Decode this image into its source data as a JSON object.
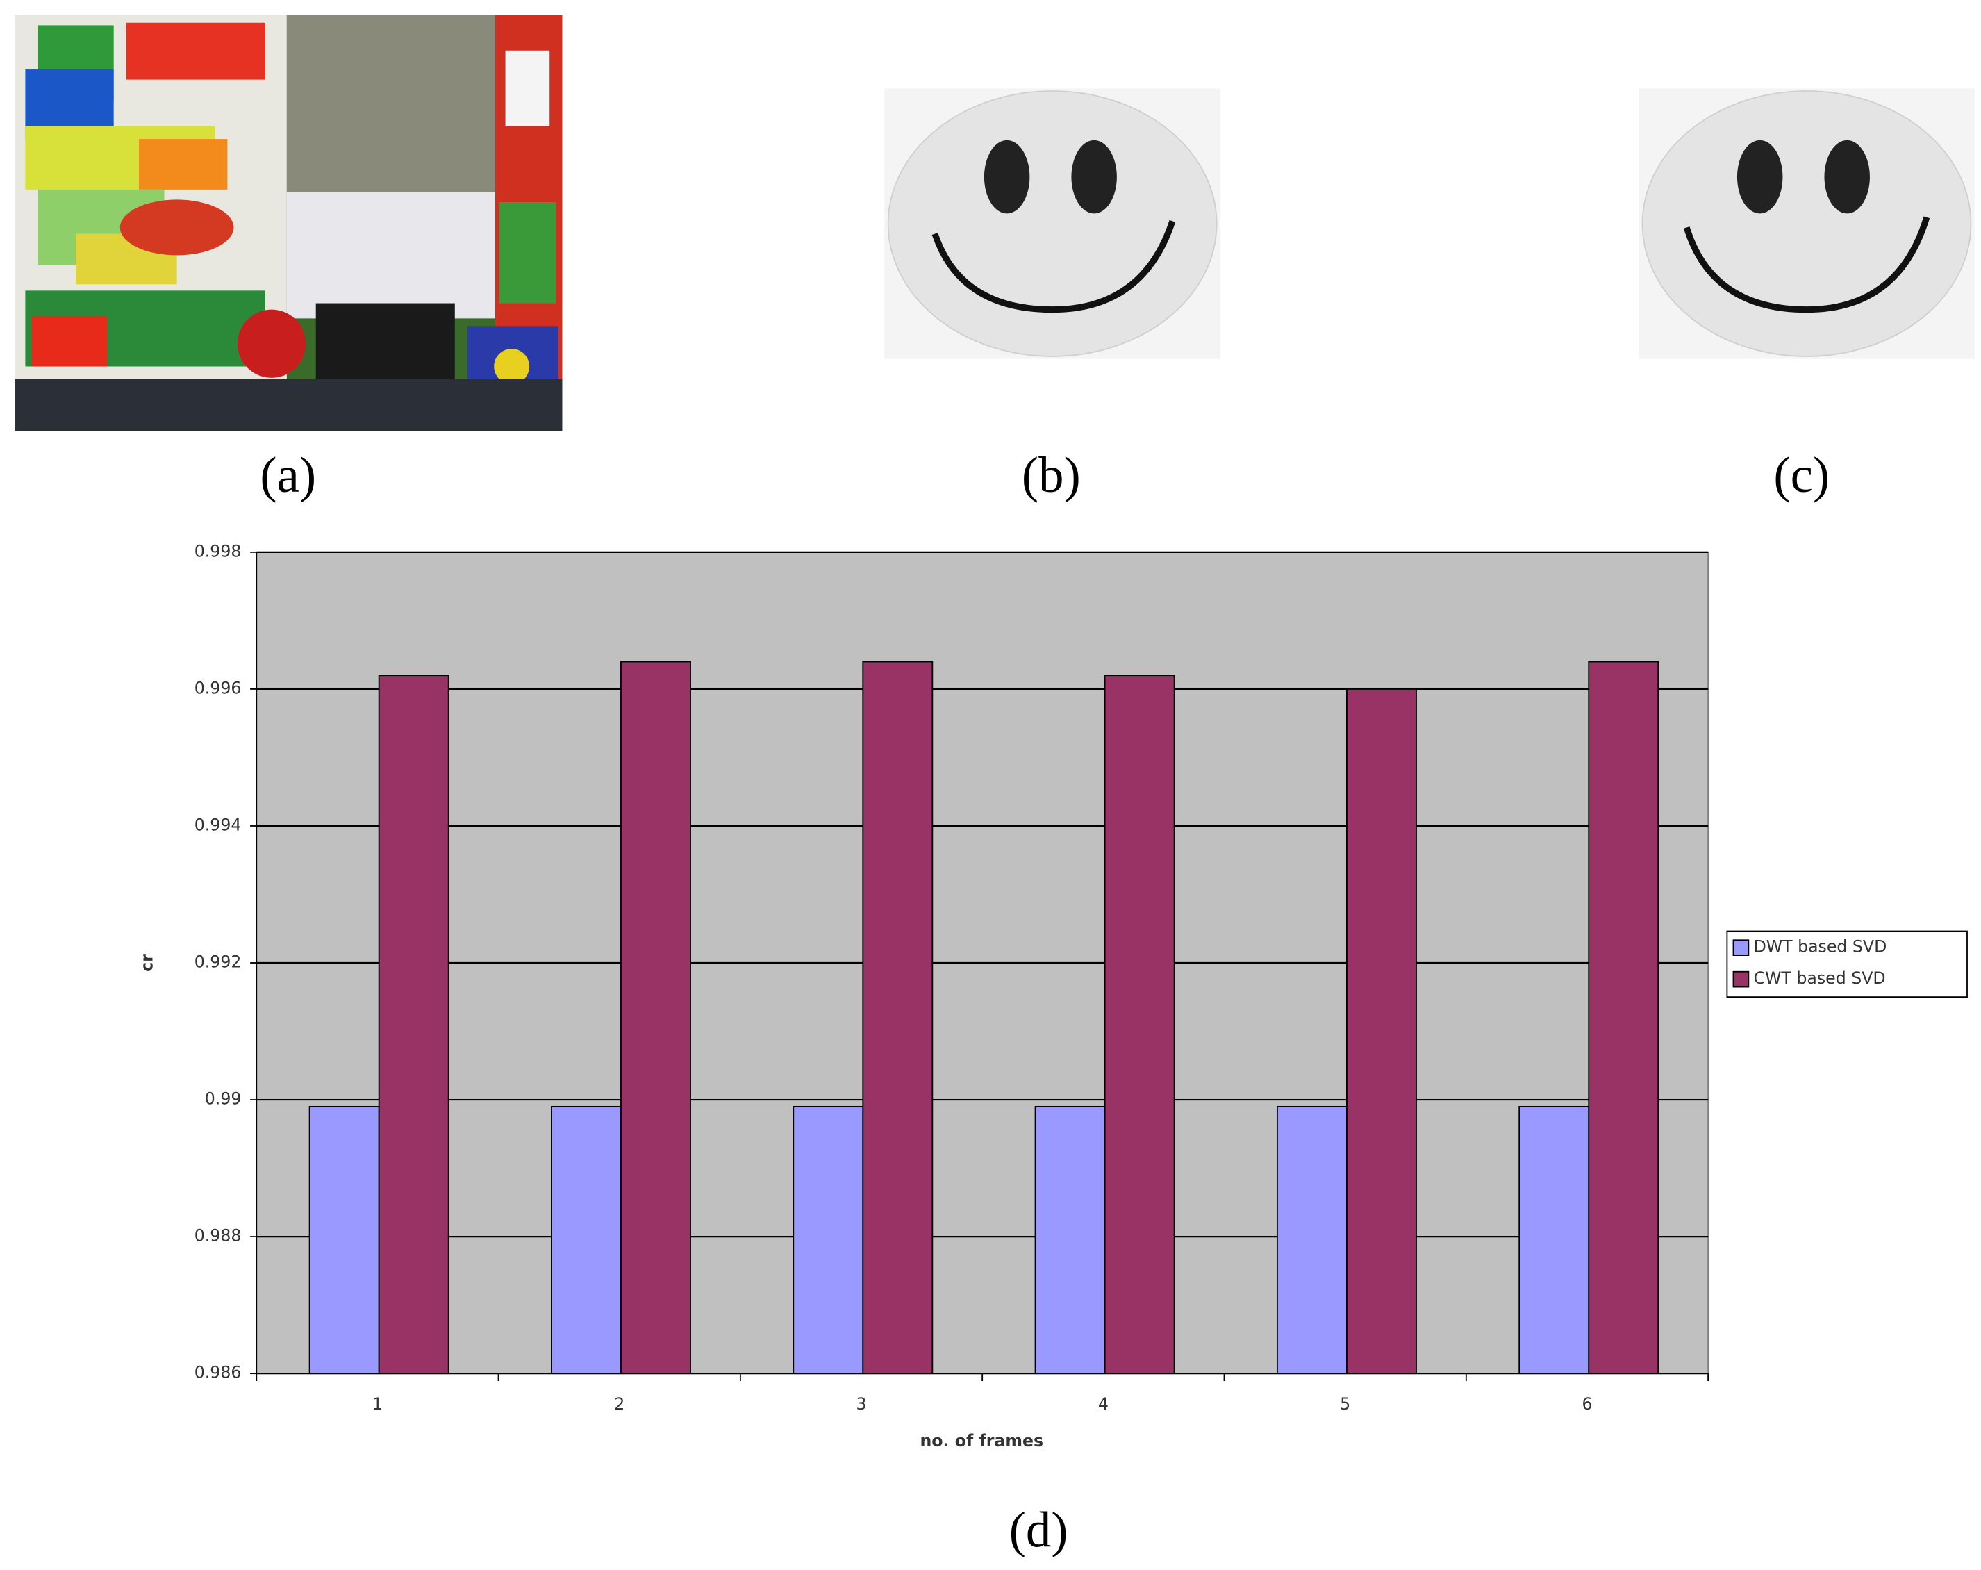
{
  "panel_labels": [
    "(a)",
    "(b)",
    "(c)",
    "(d)"
  ],
  "chart_data": {
    "type": "bar",
    "x_label": "no. of frames",
    "y_label": "cr",
    "categories": [
      "1",
      "2",
      "3",
      "4",
      "5",
      "6"
    ],
    "series": [
      {
        "name": "DWT based SVD",
        "color": "#9999ff",
        "values": [
          0.9899,
          0.9899,
          0.9899,
          0.9899,
          0.9899,
          0.9899
        ]
      },
      {
        "name": "CWT based SVD",
        "color": "#993366",
        "values": [
          0.9962,
          0.9964,
          0.9964,
          0.9962,
          0.996,
          0.9964
        ]
      }
    ],
    "ylim": [
      0.986,
      0.998
    ],
    "yticks": [
      0.986,
      0.988,
      0.99,
      0.992,
      0.994,
      0.996,
      0.998
    ],
    "grid": true,
    "plot_background": "#c0c0c0",
    "legend": "right"
  }
}
